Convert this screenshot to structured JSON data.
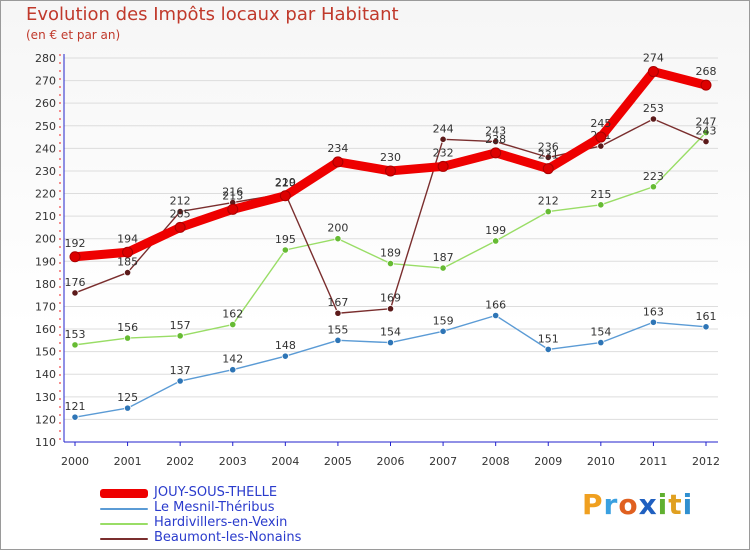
{
  "title": "Evolution des Impôts locaux par Habitant",
  "subtitle": "(en € et par an)",
  "colors": {
    "axis": "#2222cc",
    "grid": "#dddddd",
    "title": "#c0392b",
    "legend_text": "#2a3bcc"
  },
  "chart_data": {
    "type": "line",
    "title": "Evolution des Impôts locaux par Habitant",
    "subtitle": "(en € et par an)",
    "xlabel": "",
    "ylabel": "",
    "ylim": [
      110,
      280
    ],
    "ytick_step": 10,
    "grid": true,
    "legend_position": "bottom-left",
    "categories": [
      "2000",
      "2001",
      "2002",
      "2003",
      "2004",
      "2005",
      "2006",
      "2007",
      "2008",
      "2009",
      "2010",
      "2011",
      "2012"
    ],
    "series": [
      {
        "name": "Le Mesnil-Théribus",
        "color": "#5b9bd5",
        "marker": "#2e75b6",
        "weight": "thin",
        "values": [
          121,
          125,
          137,
          142,
          148,
          155,
          154,
          159,
          166,
          151,
          154,
          163,
          161
        ]
      },
      {
        "name": "Hardivillers-en-Vexin",
        "color": "#99dd66",
        "marker": "#66bb33",
        "weight": "thin",
        "values": [
          153,
          156,
          157,
          162,
          195,
          200,
          189,
          187,
          199,
          212,
          215,
          223,
          247
        ]
      },
      {
        "name": "Beaumont-les-Nonains",
        "color": "#7a2e2e",
        "marker": "#5c1a1a",
        "weight": "thin",
        "values": [
          176,
          185,
          212,
          216,
          220,
          167,
          169,
          244,
          243,
          236,
          241,
          253,
          243
        ]
      },
      {
        "name": "JOUY-SOUS-THELLE",
        "color": "#ee0000",
        "marker": "#dd0000",
        "weight": "thick",
        "values": [
          192,
          194,
          205,
          213,
          219,
          234,
          230,
          232,
          238,
          231,
          245,
          274,
          268
        ]
      }
    ],
    "legend_order": [
      "JOUY-SOUS-THELLE",
      "Le Mesnil-Théribus",
      "Hardivillers-en-Vexin",
      "Beaumont-les-Nonains"
    ]
  },
  "logo": {
    "letters": [
      "P",
      "r",
      "o",
      "x",
      "i",
      "t",
      "i"
    ],
    "colors": [
      "#f0a020",
      "#3aa0e0",
      "#e06020",
      "#2060c0",
      "#60b030",
      "#e0a020",
      "#3090d0"
    ]
  }
}
